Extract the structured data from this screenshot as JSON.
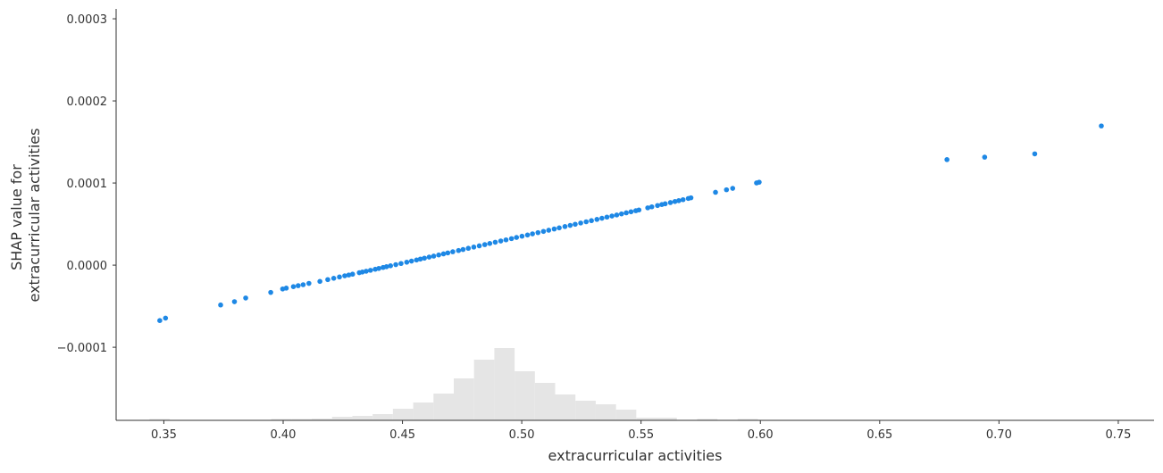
{
  "chart_data": {
    "type": "scatter",
    "title": "",
    "xlabel": "extracurricular activities",
    "ylabel": [
      "SHAP value for",
      "extracurricular activities"
    ],
    "xlim": [
      0.33,
      0.765
    ],
    "ylim": [
      -0.000189,
      0.000312
    ],
    "xticks": [
      0.35,
      0.4,
      0.45,
      0.5,
      0.55,
      0.6,
      0.65,
      0.7,
      0.75
    ],
    "xtick_labels": [
      "0.35",
      "0.40",
      "0.45",
      "0.50",
      "0.55",
      "0.60",
      "0.65",
      "0.70",
      "0.75"
    ],
    "yticks": [
      -0.0001,
      0.0,
      0.0001,
      0.0002,
      0.0003
    ],
    "ytick_labels": [
      "−0.0001",
      "0.0000",
      "0.0001",
      "0.0002",
      "0.0003"
    ],
    "grid": false,
    "point_color": "#1E88E5",
    "histogram_color": "#E5E5E5",
    "points": {
      "x": [
        0.3483,
        0.3507,
        0.3738,
        0.3796,
        0.3843,
        0.3948,
        0.3998,
        0.4013,
        0.4043,
        0.4063,
        0.4084,
        0.4108,
        0.4154,
        0.4187,
        0.4212,
        0.4236,
        0.4258,
        0.4275,
        0.4291,
        0.4319,
        0.4332,
        0.4348,
        0.4366,
        0.4386,
        0.4401,
        0.4419,
        0.4433,
        0.445,
        0.4472,
        0.4494,
        0.4518,
        0.4538,
        0.4559,
        0.4575,
        0.4592,
        0.4612,
        0.4631,
        0.4652,
        0.4672,
        0.469,
        0.4711,
        0.4735,
        0.4754,
        0.4776,
        0.4799,
        0.4822,
        0.4845,
        0.4866,
        0.4889,
        0.4912,
        0.4934,
        0.4957,
        0.4978,
        0.5001,
        0.5024,
        0.5045,
        0.5068,
        0.5091,
        0.5113,
        0.5136,
        0.5157,
        0.5181,
        0.5203,
        0.5224,
        0.5247,
        0.527,
        0.5292,
        0.5315,
        0.5336,
        0.5357,
        0.5378,
        0.5398,
        0.5418,
        0.5438,
        0.5458,
        0.5478,
        0.5491,
        0.5528,
        0.5545,
        0.5569,
        0.5587,
        0.5601,
        0.5623,
        0.5642,
        0.5658,
        0.5676,
        0.5698,
        0.5709,
        0.5812,
        0.5858,
        0.5884,
        0.5984,
        0.5995,
        0.6782,
        0.694,
        0.715,
        0.7429
      ],
      "y": [
        -6.75e-05,
        -6.45e-05,
        -4.85e-05,
        -4.45e-05,
        -4e-05,
        -3.32e-05,
        -2.9e-05,
        -2.8e-05,
        -2.62e-05,
        -2.5e-05,
        -2.38e-05,
        -2.22e-05,
        -1.98e-05,
        -1.76e-05,
        -1.6e-05,
        -1.44e-05,
        -1.3e-05,
        -1.2e-05,
        -1.1e-05,
        -9.2e-06,
        -8.4e-06,
        -7.4e-06,
        -6.3e-06,
        -5e-06,
        -4e-06,
        -2.8e-06,
        -1.9e-06,
        -8e-07,
        6e-07,
        2e-06,
        3.6e-06,
        4.9e-06,
        6.3e-06,
        7.4e-06,
        8.5e-06,
        9.8e-06,
        1.1e-05,
        1.24e-05,
        1.37e-05,
        1.49e-05,
        1.63e-05,
        1.78e-05,
        1.9e-05,
        2.05e-05,
        2.2e-05,
        2.35e-05,
        2.5e-05,
        2.64e-05,
        2.79e-05,
        2.94e-05,
        3.08e-05,
        3.23e-05,
        3.37e-05,
        3.52e-05,
        3.67e-05,
        3.81e-05,
        3.96e-05,
        4.11e-05,
        4.25e-05,
        4.4e-05,
        4.54e-05,
        4.7e-05,
        4.84e-05,
        4.98e-05,
        5.13e-05,
        5.28e-05,
        5.42e-05,
        5.57e-05,
        5.71e-05,
        5.85e-05,
        5.98e-05,
        6.11e-05,
        6.24e-05,
        6.37e-05,
        6.5e-05,
        6.63e-05,
        6.72e-05,
        6.98e-05,
        7.1e-05,
        7.26e-05,
        7.38e-05,
        7.47e-05,
        7.62e-05,
        7.75e-05,
        7.85e-05,
        7.97e-05,
        8.12e-05,
        8.2e-05,
        8.87e-05,
        9.18e-05,
        9.35e-05,
        0.0001001,
        0.000101,
        0.0001285,
        0.0001315,
        0.0001355,
        0.0001695
      ]
    },
    "histogram": {
      "bin_edges": [
        0.344,
        0.3525,
        0.361,
        0.3695,
        0.378,
        0.3865,
        0.395,
        0.4035,
        0.412,
        0.4205,
        0.429,
        0.4375,
        0.446,
        0.4545,
        0.463,
        0.4715,
        0.48,
        0.4885,
        0.497,
        0.5055,
        0.514,
        0.5225,
        0.531,
        0.5395,
        0.548,
        0.5565,
        0.565,
        0.5735,
        0.582,
        0.5905,
        0.599,
        0.6075
      ],
      "counts": [
        1,
        0,
        0,
        0,
        0,
        0,
        1,
        1,
        2,
        4,
        5,
        7,
        13,
        20,
        30,
        47,
        68,
        81,
        55,
        42,
        29,
        22,
        18,
        12,
        3,
        3,
        0,
        1,
        0,
        1,
        0
      ]
    }
  }
}
